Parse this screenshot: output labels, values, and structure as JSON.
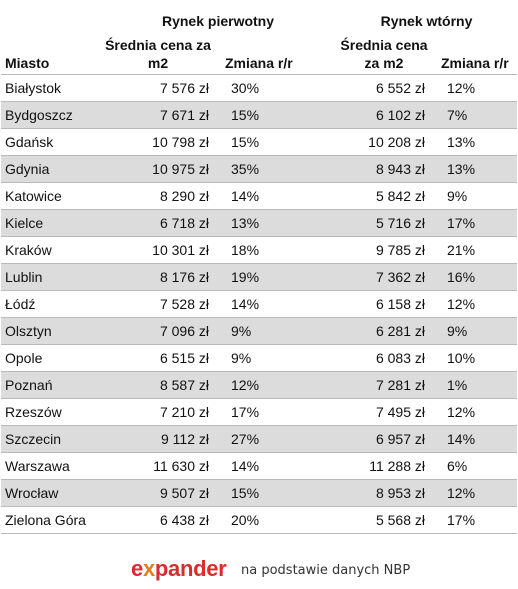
{
  "header": {
    "primary_market": "Rynek pierwotny",
    "secondary_market": "Rynek wtórny",
    "city": "Miasto",
    "primary_price": "Średnia cena za m2",
    "primary_change": "Zmiana r/r",
    "secondary_price": "Średnia cena za m2",
    "secondary_change": "Zmiana r/r"
  },
  "rows": [
    {
      "city": "Białystok",
      "primary_price": "7 576 zł",
      "primary_change": "30%",
      "secondary_price": "6 552 zł",
      "secondary_change": "12%"
    },
    {
      "city": "Bydgoszcz",
      "primary_price": "7 671 zł",
      "primary_change": "15%",
      "secondary_price": "6 102 zł",
      "secondary_change": "7%"
    },
    {
      "city": "Gdańsk",
      "primary_price": "10 798 zł",
      "primary_change": "15%",
      "secondary_price": "10 208 zł",
      "secondary_change": "13%"
    },
    {
      "city": "Gdynia",
      "primary_price": "10 975 zł",
      "primary_change": "35%",
      "secondary_price": "8 943 zł",
      "secondary_change": "13%"
    },
    {
      "city": "Katowice",
      "primary_price": "8 290 zł",
      "primary_change": "14%",
      "secondary_price": "5 842 zł",
      "secondary_change": "9%"
    },
    {
      "city": "Kielce",
      "primary_price": "6 718 zł",
      "primary_change": "13%",
      "secondary_price": "5 716 zł",
      "secondary_change": "17%"
    },
    {
      "city": "Kraków",
      "primary_price": "10 301 zł",
      "primary_change": "18%",
      "secondary_price": "9 785 zł",
      "secondary_change": "21%"
    },
    {
      "city": "Lublin",
      "primary_price": "8 176 zł",
      "primary_change": "19%",
      "secondary_price": "7 362 zł",
      "secondary_change": "16%"
    },
    {
      "city": "Łódź",
      "primary_price": "7 528 zł",
      "primary_change": "14%",
      "secondary_price": "6 158 zł",
      "secondary_change": "12%"
    },
    {
      "city": "Olsztyn",
      "primary_price": "7 096 zł",
      "primary_change": "9%",
      "secondary_price": "6 281 zł",
      "secondary_change": "9%"
    },
    {
      "city": "Opole",
      "primary_price": "6 515 zł",
      "primary_change": "9%",
      "secondary_price": "6 083 zł",
      "secondary_change": "10%"
    },
    {
      "city": "Poznań",
      "primary_price": "8 587 zł",
      "primary_change": "12%",
      "secondary_price": "7 281 zł",
      "secondary_change": "1%"
    },
    {
      "city": "Rzeszów",
      "primary_price": "7 210 zł",
      "primary_change": "17%",
      "secondary_price": "7 495 zł",
      "secondary_change": "12%"
    },
    {
      "city": "Szczecin",
      "primary_price": "9 112 zł",
      "primary_change": "27%",
      "secondary_price": "6 957 zł",
      "secondary_change": "14%"
    },
    {
      "city": "Warszawa",
      "primary_price": "11 630 zł",
      "primary_change": "14%",
      "secondary_price": "11 288 zł",
      "secondary_change": "6%"
    },
    {
      "city": "Wrocław",
      "primary_price": "9 507 zł",
      "primary_change": "15%",
      "secondary_price": "8 953 zł",
      "secondary_change": "12%"
    },
    {
      "city": "Zielona Góra",
      "primary_price": "6 438 zł",
      "primary_change": "20%",
      "secondary_price": "5 568 zł",
      "secondary_change": "17%"
    }
  ],
  "footer": {
    "logo_left": "e",
    "logo_x": "x",
    "logo_right": "pander",
    "source": "na podstawie danych NBP"
  },
  "colors": {
    "logo_red": "#d92c2f",
    "logo_orange": "#e27d1e",
    "row_stripe": "#dcdcdc"
  }
}
